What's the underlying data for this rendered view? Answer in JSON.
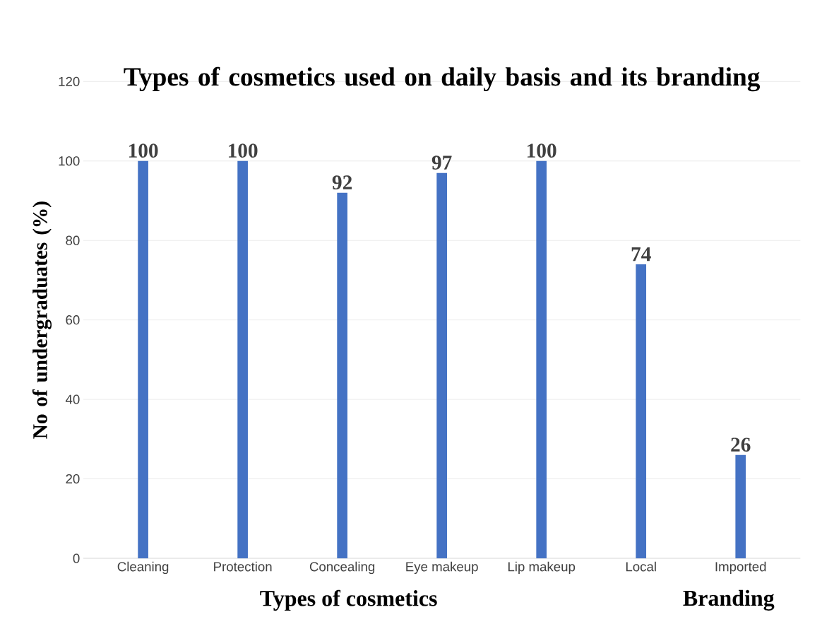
{
  "chart_data": {
    "type": "bar",
    "title": "Types of cosmetics used on daily basis and its branding",
    "xlabel": "Types of cosmetics",
    "ylabel": "No of  undergraduates (%)",
    "categories": [
      "Cleaning",
      "Protection",
      "Concealing",
      "Eye makeup",
      "Lip makeup",
      "Local",
      "Imported"
    ],
    "values": [
      100,
      100,
      92,
      97,
      100,
      74,
      26
    ],
    "color": "#4472c4",
    "ylim": [
      0,
      120
    ],
    "yticks": [
      0,
      20,
      40,
      60,
      80,
      100,
      120
    ],
    "grid": "y",
    "data_labels": true,
    "annotations": [
      "Branding"
    ]
  }
}
